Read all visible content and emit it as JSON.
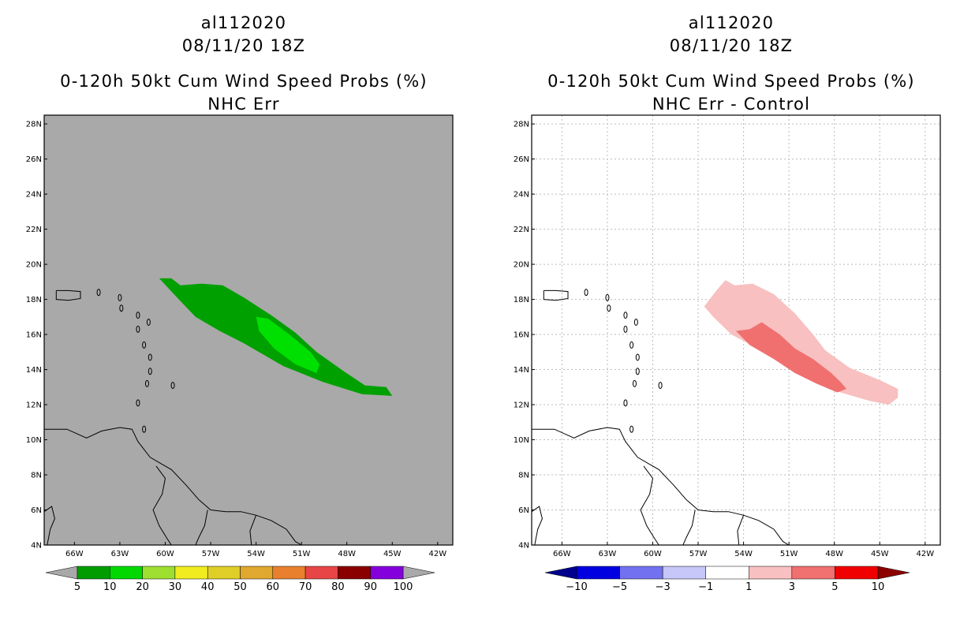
{
  "chart_data": [
    {
      "type": "heatmap",
      "storm_id": "al112020",
      "datetime": "08/11/20 18Z",
      "title": "0-120h 50kt Cum Wind Speed Probs (%)",
      "subtitle": "NHC Err",
      "background": "#a9a9a9",
      "xlabel": "",
      "ylabel": "",
      "xlim": [
        -68,
        -41
      ],
      "ylim": [
        4,
        28.5
      ],
      "x_ticks": [
        -66,
        -63,
        -60,
        -57,
        -54,
        -51,
        -48,
        -45,
        -42
      ],
      "x_tick_labels": [
        "66W",
        "63W",
        "60W",
        "57W",
        "54W",
        "51W",
        "48W",
        "45W",
        "42W"
      ],
      "y_ticks": [
        4,
        6,
        8,
        10,
        12,
        14,
        16,
        18,
        20,
        22,
        24,
        26,
        28
      ],
      "y_tick_labels": [
        "4N",
        "6N",
        "8N",
        "10N",
        "12N",
        "14N",
        "16N",
        "18N",
        "20N",
        "22N",
        "24N",
        "26N",
        "28N"
      ],
      "grid": false,
      "contours": [
        {
          "level": "5-10",
          "color": "#00a000",
          "points": [
            [
              -60.4,
              19.2
            ],
            [
              -59.6,
              19.2
            ],
            [
              -59.0,
              18.8
            ],
            [
              -57.6,
              18.9
            ],
            [
              -56.2,
              18.8
            ],
            [
              -54.8,
              18.1
            ],
            [
              -53.0,
              17.1
            ],
            [
              -51.4,
              16.1
            ],
            [
              -50.0,
              15.0
            ],
            [
              -48.2,
              13.9
            ],
            [
              -46.8,
              13.1
            ],
            [
              -45.4,
              13.0
            ],
            [
              -45.0,
              12.5
            ],
            [
              -47.0,
              12.6
            ],
            [
              -49.6,
              13.3
            ],
            [
              -52.2,
              14.2
            ],
            [
              -54.8,
              15.5
            ],
            [
              -56.4,
              16.2
            ],
            [
              -58.0,
              17.0
            ],
            [
              -59.1,
              18.0
            ]
          ]
        },
        {
          "level": "10-20",
          "color": "#00e000",
          "points": [
            [
              -54.0,
              17.0
            ],
            [
              -53.2,
              16.9
            ],
            [
              -51.8,
              16.0
            ],
            [
              -50.4,
              15.0
            ],
            [
              -49.8,
              14.3
            ],
            [
              -50.0,
              13.8
            ],
            [
              -51.4,
              14.3
            ],
            [
              -52.8,
              15.2
            ],
            [
              -53.8,
              16.2
            ]
          ]
        }
      ],
      "colorbar": {
        "labels": [
          "5",
          "10",
          "20",
          "30",
          "40",
          "50",
          "60",
          "70",
          "80",
          "90",
          "100"
        ],
        "colors": [
          "#009c00",
          "#00d800",
          "#9ede30",
          "#f0ec20",
          "#dfce28",
          "#e0a82e",
          "#e8802e",
          "#e84646",
          "#8a0000",
          "#8400dc"
        ],
        "end_colors": [
          "#a9a9a9",
          "#a9a9a9"
        ]
      }
    },
    {
      "type": "heatmap",
      "storm_id": "al112020",
      "datetime": "08/11/20 18Z",
      "title": "0-120h 50kt Cum Wind Speed Probs (%)",
      "subtitle": "NHC Err - Control",
      "background": "#ffffff",
      "xlabel": "",
      "ylabel": "",
      "xlim": [
        -68,
        -41
      ],
      "ylim": [
        4,
        28.5
      ],
      "x_ticks": [
        -66,
        -63,
        -60,
        -57,
        -54,
        -51,
        -48,
        -45,
        -42
      ],
      "x_tick_labels": [
        "66W",
        "63W",
        "60W",
        "57W",
        "54W",
        "51W",
        "48W",
        "45W",
        "42W"
      ],
      "y_ticks": [
        4,
        6,
        8,
        10,
        12,
        14,
        16,
        18,
        20,
        22,
        24,
        26,
        28
      ],
      "y_tick_labels": [
        "4N",
        "6N",
        "8N",
        "10N",
        "12N",
        "14N",
        "16N",
        "18N",
        "20N",
        "22N",
        "24N",
        "26N",
        "28N"
      ],
      "grid": true,
      "contours": [
        {
          "level": "1-3",
          "color": "#f8c0c0",
          "points": [
            [
              -55.8,
              18.5
            ],
            [
              -55.2,
              19.1
            ],
            [
              -54.6,
              18.8
            ],
            [
              -53.4,
              18.9
            ],
            [
              -52.0,
              18.3
            ],
            [
              -50.6,
              17.2
            ],
            [
              -49.4,
              16.0
            ],
            [
              -48.6,
              15.1
            ],
            [
              -47.0,
              14.1
            ],
            [
              -45.0,
              13.4
            ],
            [
              -43.8,
              12.9
            ],
            [
              -43.8,
              12.4
            ],
            [
              -44.4,
              12.0
            ],
            [
              -45.6,
              12.2
            ],
            [
              -48.4,
              12.9
            ],
            [
              -50.6,
              14.0
            ],
            [
              -52.6,
              15.0
            ],
            [
              -54.8,
              16.0
            ],
            [
              -56.0,
              17.0
            ],
            [
              -56.6,
              17.6
            ]
          ]
        },
        {
          "level": "3-5",
          "color": "#f07070",
          "points": [
            [
              -54.5,
              16.2
            ],
            [
              -53.6,
              16.3
            ],
            [
              -52.8,
              16.7
            ],
            [
              -51.6,
              16.0
            ],
            [
              -50.6,
              15.2
            ],
            [
              -49.4,
              14.6
            ],
            [
              -48.2,
              13.8
            ],
            [
              -47.6,
              13.3
            ],
            [
              -47.2,
              12.9
            ],
            [
              -47.8,
              12.7
            ],
            [
              -49.2,
              13.2
            ],
            [
              -50.6,
              13.8
            ],
            [
              -52.0,
              14.6
            ],
            [
              -53.6,
              15.4
            ]
          ]
        }
      ],
      "colorbar": {
        "labels": [
          "−10",
          "−5",
          "−3",
          "−1",
          "1",
          "3",
          "5",
          "10"
        ],
        "colors": [
          "#0000e0",
          "#7272f0",
          "#c6c6f8",
          "#ffffff",
          "#f8c0c0",
          "#f07070",
          "#f00000"
        ],
        "end_colors": [
          "#00008c",
          "#8c0000"
        ]
      }
    }
  ],
  "map_features": {
    "coastline_color": "#000000",
    "islands": [
      {
        "name": "Puerto Rico",
        "points": [
          [
            -67.2,
            18.5
          ],
          [
            -65.6,
            18.45
          ],
          [
            -65.6,
            18.0
          ],
          [
            -67.2,
            18.0
          ]
        ]
      }
    ]
  }
}
